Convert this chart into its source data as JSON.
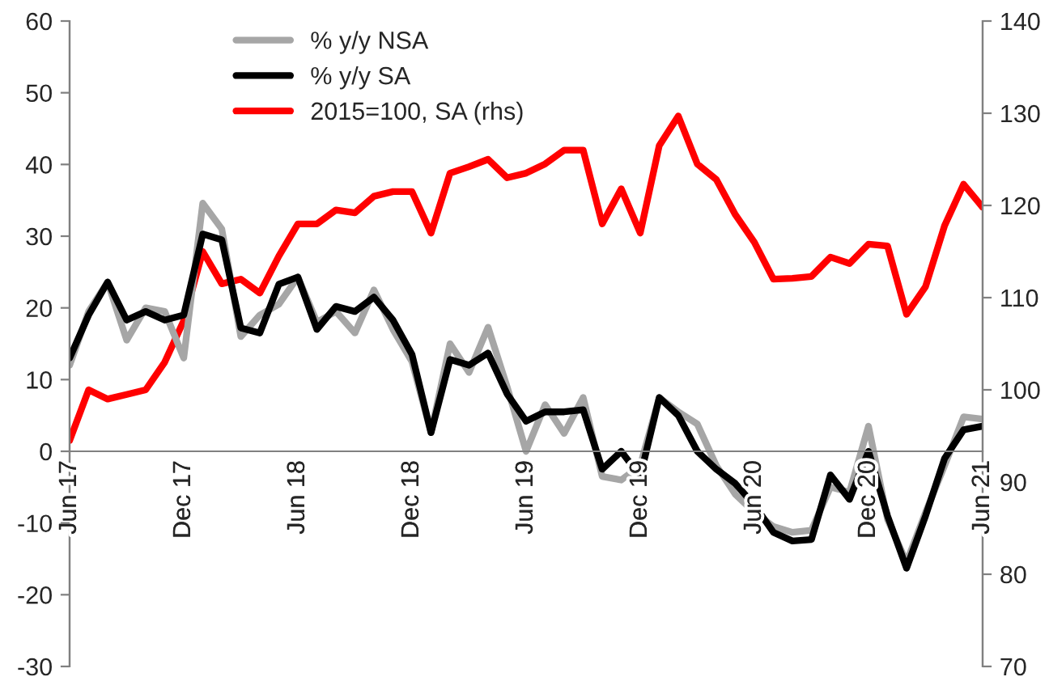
{
  "chart_data": {
    "type": "line",
    "categories": [
      "Jun 17",
      null,
      null,
      null,
      null,
      null,
      "Dec 17",
      null,
      null,
      null,
      null,
      null,
      "Jun 18",
      null,
      null,
      null,
      null,
      null,
      "Dec 18",
      null,
      null,
      null,
      null,
      null,
      "Jun 19",
      null,
      null,
      null,
      null,
      null,
      "Dec 19",
      null,
      null,
      null,
      null,
      null,
      "Jun 20",
      null,
      null,
      null,
      null,
      null,
      "Dec 20",
      null,
      null,
      null,
      null,
      null,
      "Jun 21"
    ],
    "series": [
      {
        "name": "% y/y NSA",
        "color": "#a6a6a6",
        "values": [
          12,
          19.5,
          23.6,
          15.5,
          20,
          19.5,
          13,
          34.6,
          31,
          16,
          19,
          20.5,
          24.3,
          18,
          19.5,
          16.5,
          22.5,
          17,
          12.5,
          2.6,
          15,
          11,
          17.3,
          9,
          0,
          6.5,
          2.5,
          7.5,
          -3.5,
          -4,
          -2,
          7.5,
          5.5,
          3.8,
          -2,
          -6,
          -8.5,
          -10.5,
          -11.3,
          -11,
          -5,
          -5.7,
          3.5,
          -9.5,
          -15.5,
          -8.5,
          -2,
          4.8,
          4.5
        ]
      },
      {
        "name": "% y/y SA",
        "color": "#000000",
        "values": [
          13,
          19,
          23.6,
          18.3,
          19.5,
          18.3,
          19,
          30.3,
          29.5,
          17.2,
          16.5,
          23.3,
          24.3,
          17,
          20.2,
          19.5,
          21.5,
          18.3,
          13.5,
          2.6,
          12.8,
          12,
          13.7,
          8,
          4.2,
          5.5,
          5.5,
          5.8,
          -2.5,
          0,
          -3.5,
          7.5,
          5,
          0,
          -2.5,
          -4.5,
          -7.5,
          -11.3,
          -12.5,
          -12.3,
          -3.3,
          -6.7,
          0,
          -9,
          -16.3,
          -9,
          -1,
          3,
          3.5
        ]
      },
      {
        "name": "2015=100, SA (rhs)",
        "color": "#ff0000",
        "axis": "y2",
        "values": [
          94.5,
          100,
          99,
          99.5,
          100,
          103,
          107.5,
          115,
          111.5,
          112,
          110.5,
          114.5,
          118,
          118,
          119.5,
          119.2,
          121,
          121.5,
          121.5,
          117,
          123.5,
          124.2,
          125,
          123,
          123.5,
          124.5,
          126,
          126,
          118,
          121.8,
          117,
          126.5,
          129.7,
          124.5,
          122.8,
          119,
          116,
          112,
          112.1,
          112.3,
          114.4,
          113.7,
          115.8,
          115.6,
          108.2,
          111.2,
          117.8,
          122.3,
          119.8
        ]
      }
    ],
    "ylim": [
      -30,
      60
    ],
    "yticks": [
      -30,
      -20,
      -10,
      0,
      10,
      20,
      30,
      40,
      50,
      60
    ],
    "y2lim": [
      70,
      140
    ],
    "y2ticks": [
      70,
      80,
      90,
      100,
      110,
      120,
      130,
      140
    ],
    "legend": "top",
    "grid": false,
    "marker": "none",
    "line_style": "solid"
  }
}
